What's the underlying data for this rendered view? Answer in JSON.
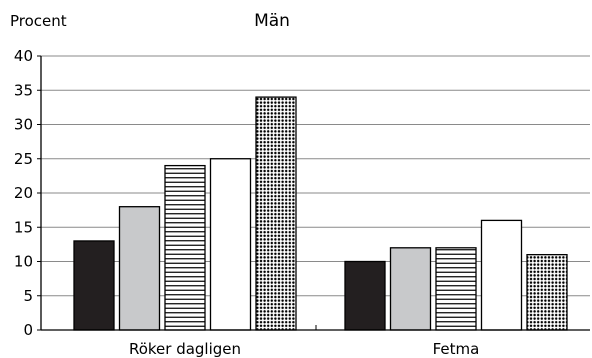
{
  "chart_data": {
    "type": "bar",
    "title": "Män",
    "ylabel": "Procent",
    "xlabel": "",
    "ylim": [
      0,
      40
    ],
    "yticks": [
      0,
      5,
      10,
      15,
      20,
      25,
      30,
      35,
      40
    ],
    "ytick_labels": [
      "0",
      "5",
      "10",
      "15",
      "20",
      "25",
      "30",
      "35",
      "40"
    ],
    "grid": true,
    "legend": "none",
    "categories": [
      "Röker dagligen",
      "Fetma"
    ],
    "series": [
      {
        "values": [
          13,
          10
        ],
        "pattern": "solid-black"
      },
      {
        "values": [
          18,
          12
        ],
        "pattern": "solid-gray"
      },
      {
        "values": [
          24,
          12
        ],
        "pattern": "horizontal-lines"
      },
      {
        "values": [
          25,
          16
        ],
        "pattern": "white"
      },
      {
        "values": [
          34,
          11
        ],
        "pattern": "dots"
      }
    ]
  },
  "colors": {
    "black": "#231f20",
    "gray": "#c8c9cb",
    "white": "#ffffff",
    "grid": "#8a8a8a",
    "axis": "#000000"
  }
}
